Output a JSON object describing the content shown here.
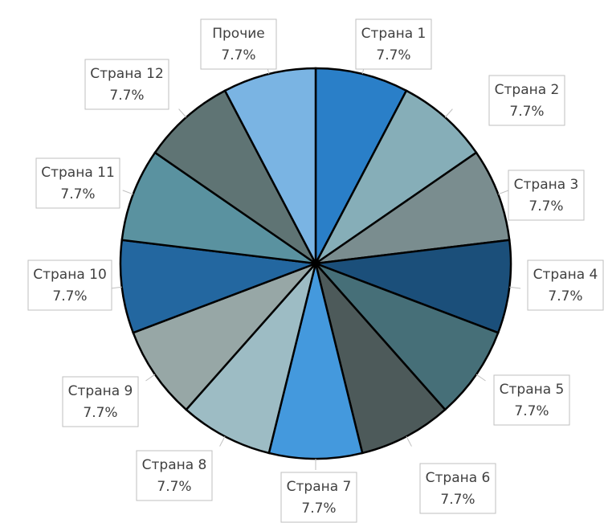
{
  "chart_data": {
    "type": "pie",
    "categories": [
      "Страна 1",
      "Страна 2",
      "Страна 3",
      "Страна 4",
      "Страна 5",
      "Страна 6",
      "Страна 7",
      "Страна 8",
      "Страна 9",
      "Страна 10",
      "Страна 11",
      "Страна 12",
      "Прочие"
    ],
    "values": [
      7.7,
      7.7,
      7.7,
      7.7,
      7.7,
      7.7,
      7.7,
      7.7,
      7.7,
      7.7,
      7.7,
      7.7,
      7.7
    ],
    "value_labels": [
      "7.7%",
      "7.7%",
      "7.7%",
      "7.7%",
      "7.7%",
      "7.7%",
      "7.7%",
      "7.7%",
      "7.7%",
      "7.7%",
      "7.7%",
      "7.7%",
      "7.7%"
    ],
    "colors": [
      "#2a7fc8",
      "#86aeb8",
      "#7a8d8f",
      "#1b4f7a",
      "#466f78",
      "#4d5a5a",
      "#4499dd",
      "#9dbcc4",
      "#97a7a6",
      "#2367a0",
      "#5a92a0",
      "#5f7474",
      "#7ab4e3"
    ]
  }
}
